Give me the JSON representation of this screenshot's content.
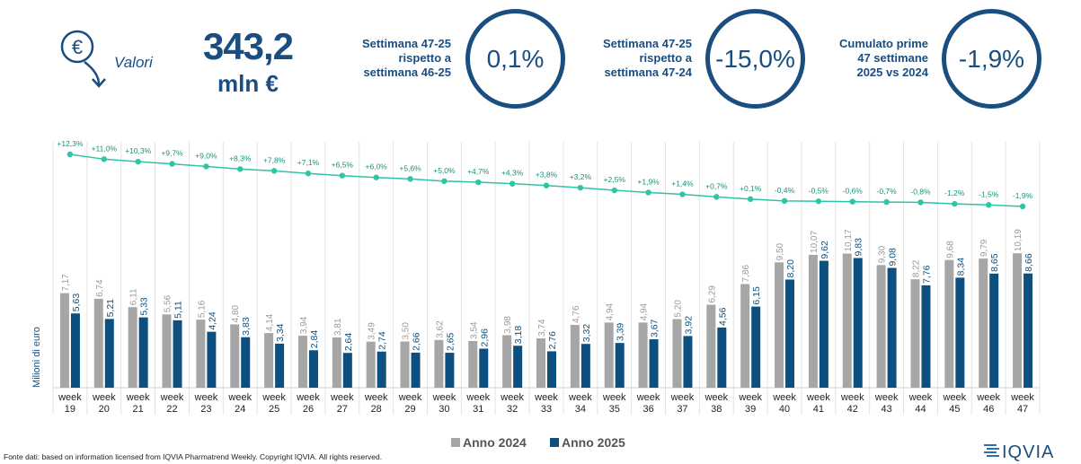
{
  "header": {
    "icon_label": "Valori",
    "kpi_value": "343,2",
    "kpi_unit": "mln €",
    "boxes": [
      {
        "label_lines": [
          "Settimana 47-25",
          "rispetto a",
          "settimana 46-25"
        ],
        "value": "0,1%"
      },
      {
        "label_lines": [
          "Settimana 47-25",
          "rispetto a",
          "settimana 47-24"
        ],
        "value": "-15,0%"
      },
      {
        "label_lines": [
          "Cumulato prime",
          "47 settimane",
          "2025 vs 2024"
        ],
        "value": "-1,9%"
      }
    ]
  },
  "colors": {
    "primary": "#1a4d80",
    "series_2024": "#a6a6a6",
    "series_2025": "#0d4f7e",
    "line": "#2ec4a6"
  },
  "chart_data": {
    "type": "bar",
    "ylabel": "Milioni di euro",
    "categories": [
      "week 19",
      "week 20",
      "week 21",
      "week 22",
      "week 23",
      "week 24",
      "week 25",
      "week 26",
      "week 27",
      "week 28",
      "week 29",
      "week 30",
      "week 31",
      "week 32",
      "week 33",
      "week 34",
      "week 35",
      "week 36",
      "week 37",
      "week 38",
      "week 39",
      "week 40",
      "week 41",
      "week 42",
      "week 43",
      "week 44",
      "week 45",
      "week 46",
      "week 47"
    ],
    "series": [
      {
        "name": "Anno 2024",
        "values": [
          7.17,
          6.74,
          6.11,
          5.56,
          5.16,
          4.8,
          4.14,
          3.94,
          3.81,
          3.49,
          3.5,
          3.62,
          3.54,
          3.98,
          3.74,
          4.76,
          4.94,
          4.94,
          5.2,
          6.29,
          7.86,
          9.5,
          10.07,
          10.17,
          9.3,
          8.22,
          9.68,
          9.79,
          10.19
        ],
        "labels": [
          "7,17",
          "6,74",
          "6,11",
          "5,56",
          "5,16",
          "4,80",
          "4,14",
          "3,94",
          "3,81",
          "3,49",
          "3,50",
          "3,62",
          "3,54",
          "3,98",
          "3,74",
          "4,76",
          "4,94",
          "4,94",
          "5,20",
          "6,29",
          "7,86",
          "9,50",
          "10,07",
          "10,17",
          "9,30",
          "8,22",
          "9,68",
          "9,79",
          "10,19"
        ]
      },
      {
        "name": "Anno 2025",
        "values": [
          5.63,
          5.21,
          5.33,
          5.11,
          4.24,
          3.83,
          3.34,
          2.84,
          2.64,
          2.74,
          2.66,
          2.65,
          2.96,
          3.18,
          2.76,
          3.32,
          3.39,
          3.67,
          3.92,
          4.56,
          6.15,
          8.2,
          9.62,
          9.83,
          9.08,
          7.76,
          8.34,
          8.65,
          8.66
        ],
        "labels": [
          "5,63",
          "5,21",
          "5,33",
          "5,11",
          "4,24",
          "3,83",
          "3,34",
          "2,84",
          "2,64",
          "2,74",
          "2,66",
          "2,65",
          "2,96",
          "3,18",
          "2,76",
          "3,32",
          "3,39",
          "3,67",
          "3,92",
          "4,56",
          "6,15",
          "8,20",
          "9,62",
          "9,83",
          "9,08",
          "7,76",
          "8,34",
          "8,65",
          "8,66"
        ]
      }
    ],
    "cumulative_line": {
      "values": [
        12.3,
        11.0,
        10.3,
        9.7,
        9.0,
        8.3,
        7.8,
        7.1,
        6.5,
        6.0,
        5.6,
        5.0,
        4.7,
        4.3,
        3.8,
        3.2,
        2.5,
        1.9,
        1.4,
        0.7,
        0.1,
        -0.4,
        -0.5,
        -0.6,
        -0.7,
        -0.8,
        -1.2,
        -1.5,
        -1.9
      ],
      "labels": [
        "+12,3%",
        "+11,0%",
        "+10,3%",
        "+9,7%",
        "+9,0%",
        "+8,3%",
        "+7,8%",
        "+7,1%",
        "+6,5%",
        "+6,0%",
        "+5,6%",
        "+5,0%",
        "+4,7%",
        "+4,3%",
        "+3,8%",
        "+3,2%",
        "+2,5%",
        "+1,9%",
        "+1,4%",
        "+0,7%",
        "+0,1%",
        "-0,4%",
        "-0,5%",
        "-0,6%",
        "-0,7%",
        "-0,8%",
        "-1,2%",
        "-1,5%",
        "-1,9%"
      ]
    },
    "ylim": [
      0,
      11
    ],
    "legend_position": "bottom-center",
    "grid": true
  },
  "footer": {
    "source": "Fonte dati: based on information licensed from IQVIA Pharmatrend Weekly. Copyright IQVIA. All rights reserved.",
    "logo_text": "IQVIA"
  }
}
